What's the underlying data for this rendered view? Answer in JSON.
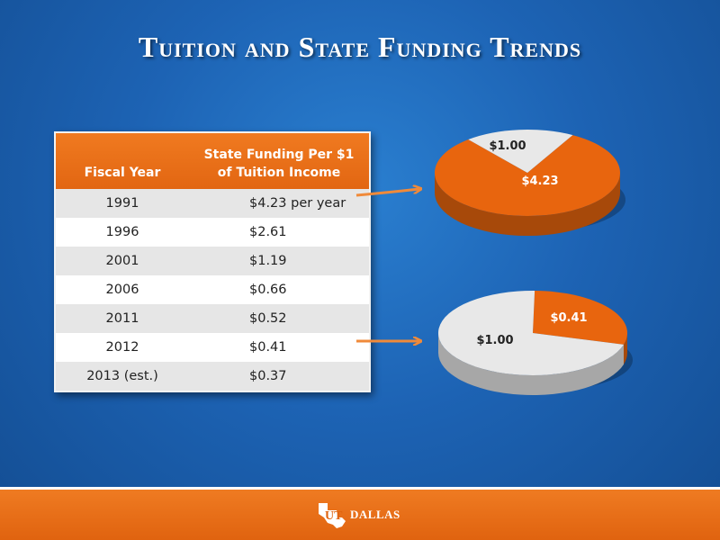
{
  "slide": {
    "title": "Tuition and State Funding Trends"
  },
  "table": {
    "headers": {
      "fiscal_year": "Fiscal Year",
      "funding_line1": "State Funding Per $1",
      "funding_line2": "of Tuition Income"
    },
    "rows": [
      {
        "year": "1991",
        "value": "$4.23 per year"
      },
      {
        "year": "1996",
        "value": "$2.61"
      },
      {
        "year": "2001",
        "value": "$1.19"
      },
      {
        "year": "2006",
        "value": "$0.66"
      },
      {
        "year": "2011",
        "value": "$0.52"
      },
      {
        "year": "2012",
        "value": "$0.41"
      },
      {
        "year": "2013 (est.)",
        "value": "$0.37"
      }
    ]
  },
  "chart_data": [
    {
      "type": "pie",
      "labels": [
        "$4.23",
        "$1.00"
      ],
      "values": [
        4.23,
        1.0
      ],
      "colors": [
        "#e8650e",
        "#e8e8e8"
      ]
    },
    {
      "type": "pie",
      "labels": [
        "$0.41",
        "$1.00"
      ],
      "values": [
        0.41,
        1.0
      ],
      "colors": [
        "#e8650e",
        "#e8e8e8"
      ]
    }
  ],
  "colors": {
    "background": "#1d63b4",
    "accent_orange": "#e8650e",
    "header_orange": "#f07a20",
    "row_gray": "#e6e6e6"
  },
  "footer": {
    "logo_text": "DALLAS",
    "logo_icon": "texas-star-logo-icon"
  }
}
